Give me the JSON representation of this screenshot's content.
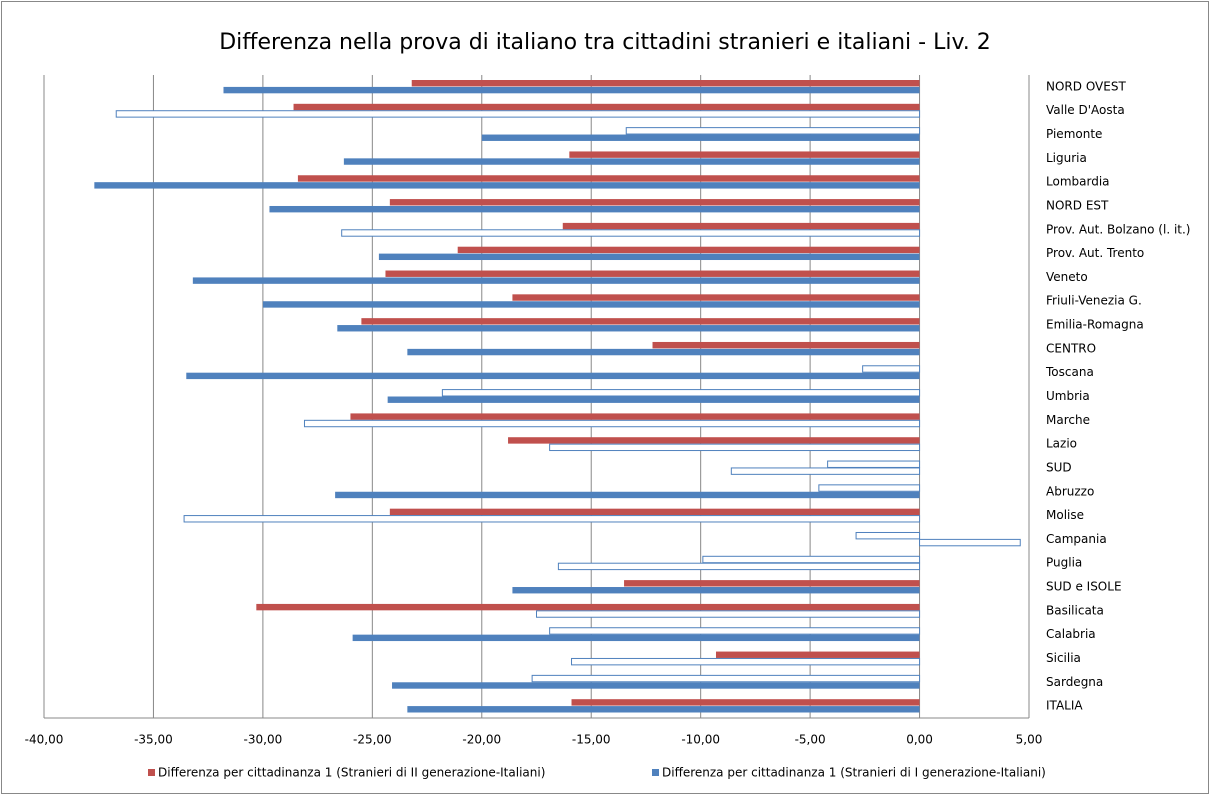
{
  "chart_data": {
    "type": "hbar",
    "title": "Differenza nella prova di italiano tra cittadini stranieri e italiani - Liv. 2",
    "categories": [
      "NORD OVEST",
      "Valle D'Aosta",
      "Piemonte",
      "Liguria",
      "Lombardia",
      "NORD EST",
      "Prov. Aut. Bolzano (l. it.)",
      "Prov. Aut. Trento",
      "Veneto",
      "Friuli-Venezia G.",
      "Emilia-Romagna",
      "CENTRO",
      "Toscana",
      "Umbria",
      "Marche",
      "Lazio",
      "SUD",
      "Abruzzo",
      "Molise",
      "Campania",
      "Puglia",
      "SUD e ISOLE",
      "Basilicata",
      "Calabria",
      "Sicilia",
      "Sardegna",
      "ITALIA"
    ],
    "series": [
      {
        "name": "Differenza per cittadinanza  1 (Stranieri di II generazione-Italiani)",
        "color": "#c0504d",
        "values": [
          -23.2,
          -28.6,
          -13.4,
          -16.0,
          -28.4,
          -24.2,
          -16.3,
          -21.1,
          -24.4,
          -18.6,
          -25.5,
          -12.2,
          -2.6,
          -21.8,
          -26.0,
          -18.8,
          -4.2,
          -4.6,
          -24.2,
          -2.9,
          -9.9,
          -13.5,
          -30.3,
          -16.9,
          -9.3,
          -17.7,
          -15.9
        ],
        "filled": [
          true,
          true,
          false,
          true,
          true,
          true,
          true,
          true,
          true,
          true,
          true,
          true,
          false,
          false,
          true,
          true,
          false,
          false,
          true,
          false,
          false,
          true,
          true,
          false,
          true,
          false,
          true
        ]
      },
      {
        "name": "Differenza per cittadinanza  1 (Stranieri di I generazione-Italiani)",
        "color": "#4f81bd",
        "values": [
          -31.8,
          -36.7,
          -20.0,
          -26.3,
          -37.7,
          -29.7,
          -26.4,
          -24.7,
          -33.2,
          -30.0,
          -26.6,
          -23.4,
          -33.5,
          -24.3,
          -28.1,
          -16.9,
          -8.6,
          -26.7,
          -33.6,
          4.6,
          -16.5,
          -18.6,
          -17.5,
          -25.9,
          -15.9,
          -24.1,
          -23.4
        ],
        "filled": [
          true,
          false,
          true,
          true,
          true,
          true,
          false,
          true,
          true,
          true,
          true,
          true,
          true,
          true,
          false,
          false,
          false,
          true,
          false,
          false,
          false,
          true,
          false,
          true,
          false,
          true,
          true
        ]
      }
    ],
    "hollow_stroke": "#4f81bd",
    "xlim": [
      -40,
      5
    ],
    "xticks": [
      {
        "value": -40,
        "label": "-40,00"
      },
      {
        "value": -35,
        "label": "-35,00"
      },
      {
        "value": -30,
        "label": "-30,00"
      },
      {
        "value": -25,
        "label": "-25,00"
      },
      {
        "value": -20,
        "label": "-20,00"
      },
      {
        "value": -15,
        "label": "-15,00"
      },
      {
        "value": -10,
        "label": "-10,00"
      },
      {
        "value": -5,
        "label": "-5,00"
      },
      {
        "value": 0,
        "label": "0,00"
      },
      {
        "value": 5,
        "label": "5,00"
      }
    ],
    "grid": true,
    "legend": "bottom"
  }
}
